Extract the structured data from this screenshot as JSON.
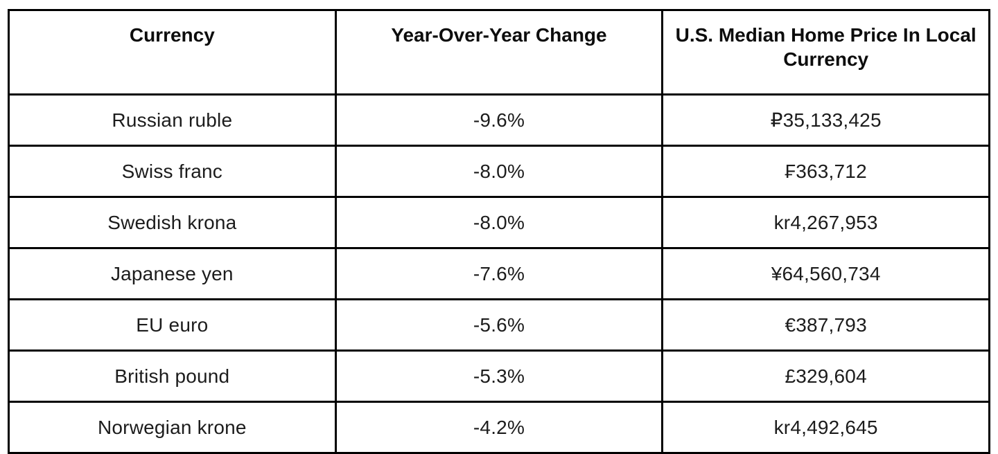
{
  "table": {
    "headers": [
      "Currency",
      "Year-Over-Year Change",
      "U.S. Median Home Price In Local Currency"
    ],
    "rows": [
      [
        "Russian ruble",
        "-9.6%",
        "₽35,133,425"
      ],
      [
        "Swiss franc",
        "-8.0%",
        "₣363,712"
      ],
      [
        "Swedish krona",
        "-8.0%",
        "kr4,267,953"
      ],
      [
        "Japanese yen",
        "-7.6%",
        "¥64,560,734"
      ],
      [
        "EU euro",
        "-5.6%",
        "€387,793"
      ],
      [
        "British pound",
        "-5.3%",
        "£329,604"
      ],
      [
        "Norwegian krone",
        "-4.2%",
        "kr4,492,645"
      ]
    ]
  },
  "chart_data": {
    "type": "table",
    "columns": [
      "Currency",
      "Year-Over-Year Change",
      "U.S. Median Home Price In Local Currency"
    ],
    "rows": [
      {
        "currency": "Russian ruble",
        "yoy_change_pct": -9.6,
        "local_price_label": "₽35,133,425",
        "local_price_value": 35133425
      },
      {
        "currency": "Swiss franc",
        "yoy_change_pct": -8.0,
        "local_price_label": "₣363,712",
        "local_price_value": 363712
      },
      {
        "currency": "Swedish krona",
        "yoy_change_pct": -8.0,
        "local_price_label": "kr4,267,953",
        "local_price_value": 4267953
      },
      {
        "currency": "Japanese yen",
        "yoy_change_pct": -7.6,
        "local_price_label": "¥64,560,734",
        "local_price_value": 64560734
      },
      {
        "currency": "EU euro",
        "yoy_change_pct": -5.6,
        "local_price_label": "€387,793",
        "local_price_value": 387793
      },
      {
        "currency": "British pound",
        "yoy_change_pct": -5.3,
        "local_price_label": "£329,604",
        "local_price_value": 329604
      },
      {
        "currency": "Norwegian krone",
        "yoy_change_pct": -4.2,
        "local_price_label": "kr4,492,645",
        "local_price_value": 4492645
      }
    ]
  },
  "colors": {
    "border": "#000000",
    "text": "#1c1c1c",
    "background": "#ffffff"
  }
}
